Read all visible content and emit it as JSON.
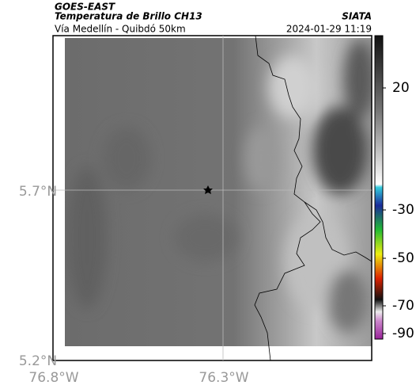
{
  "header": {
    "source": "GOES-EAST",
    "product": "Temperatura de Brillo CH13",
    "region": "Vía Medellín - Quibdó 50km",
    "agency": "SIATA",
    "timestamp": "2024-01-29 11:19"
  },
  "map": {
    "lat_labels": [
      "5.7°N",
      "5.2°N"
    ],
    "lon_labels": [
      "76.8°W",
      "76.3°W"
    ]
  },
  "colorbar": {
    "ticks": [
      20,
      -30,
      -50,
      -70,
      -90
    ]
  }
}
